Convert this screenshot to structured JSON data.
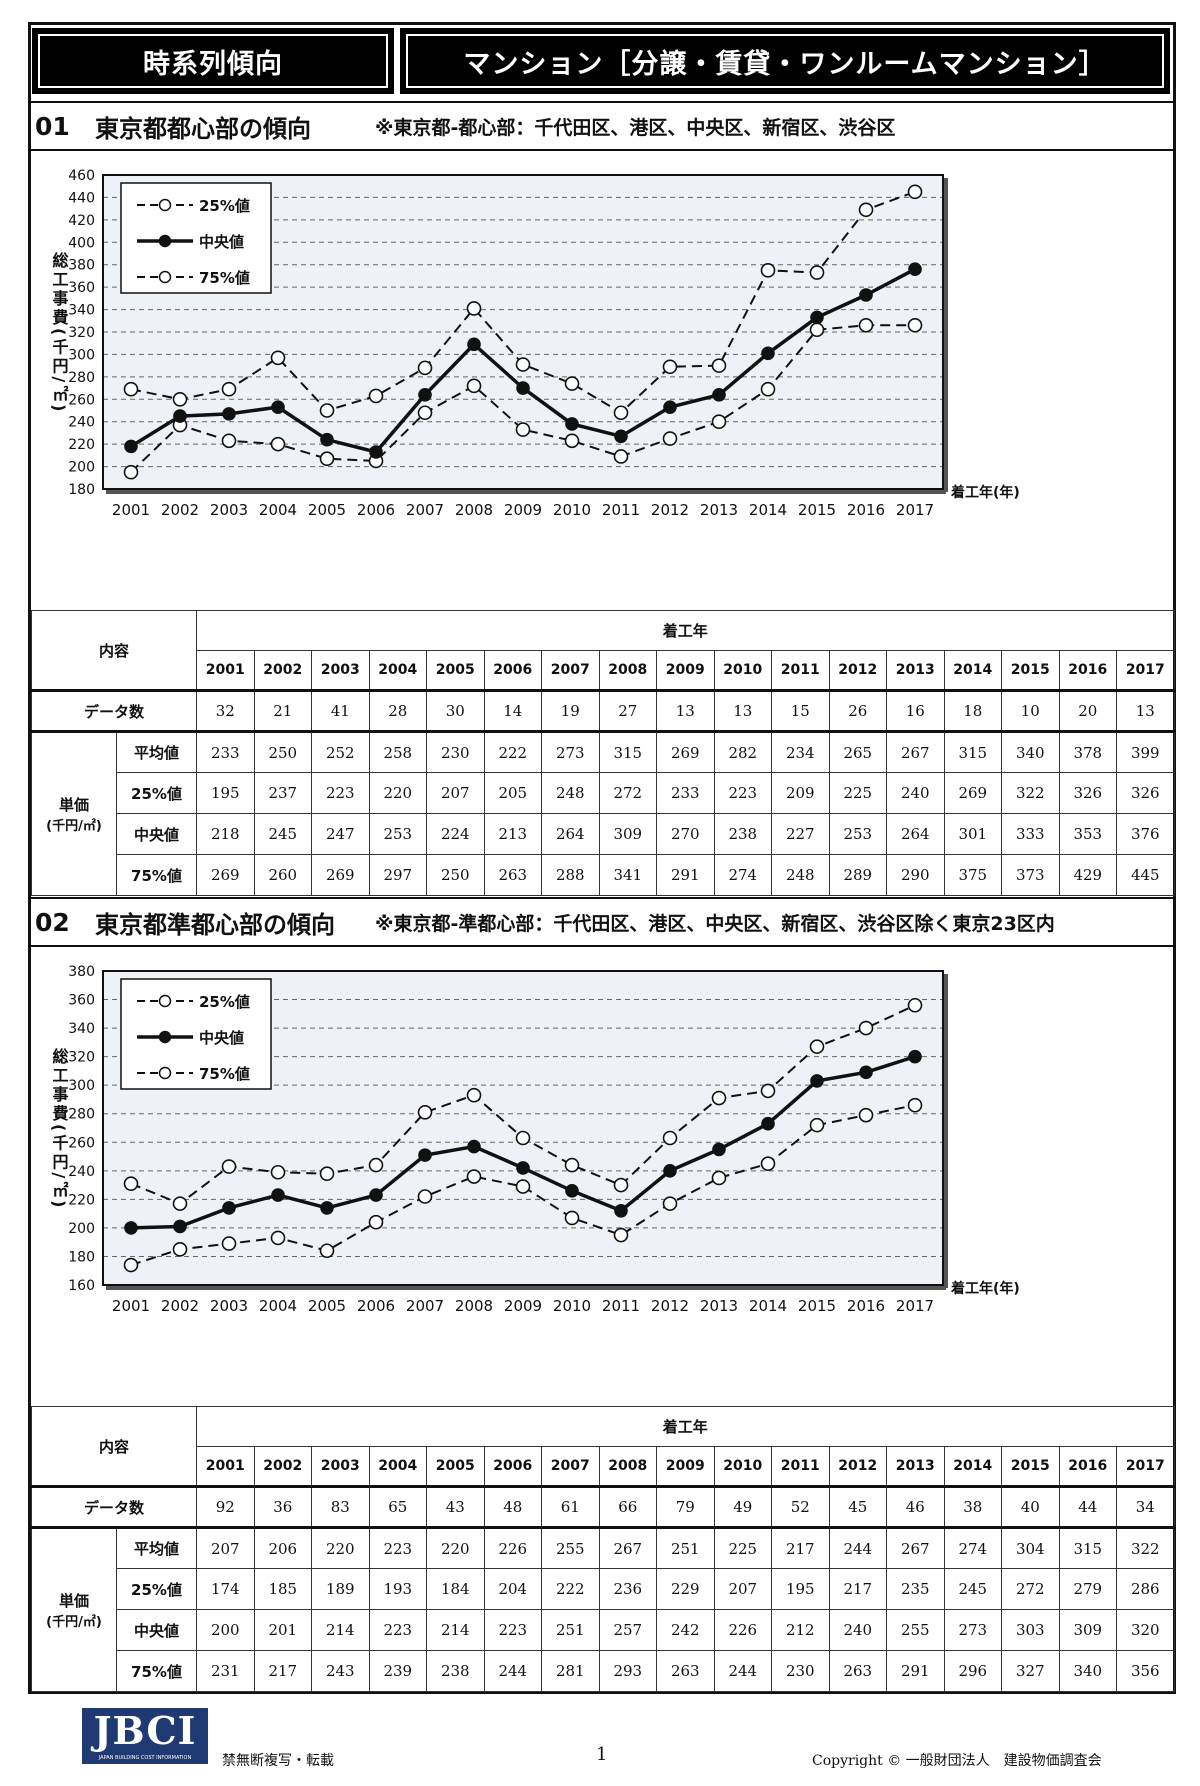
{
  "header": {
    "left_title": "時系列傾向",
    "right_title": "マンション［分譲・賃貸・ワンルームマンション］"
  },
  "sections": [
    {
      "num": "01",
      "name": "東京都都心部の傾向",
      "note": "※東京都‐都心部：千代田区、港区、中央区、新宿区、渋谷区",
      "table": {
        "corner": "内容",
        "top_header": "着工年",
        "years": [
          "2001",
          "2002",
          "2003",
          "2004",
          "2005",
          "2006",
          "2007",
          "2008",
          "2009",
          "2010",
          "2011",
          "2012",
          "2013",
          "2014",
          "2015",
          "2016",
          "2017"
        ],
        "count_label": "データ数",
        "unit_label_1": "単価",
        "unit_label_2": "(千円/㎡)",
        "count": [
          "32",
          "21",
          "41",
          "28",
          "30",
          "14",
          "19",
          "27",
          "13",
          "13",
          "15",
          "26",
          "16",
          "18",
          "10",
          "20",
          "13"
        ],
        "rows": [
          {
            "label": "平均値",
            "values": [
              "233",
              "250",
              "252",
              "258",
              "230",
              "222",
              "273",
              "315",
              "269",
              "282",
              "234",
              "265",
              "267",
              "315",
              "340",
              "378",
              "399"
            ]
          },
          {
            "label": "25%値",
            "values": [
              "195",
              "237",
              "223",
              "220",
              "207",
              "205",
              "248",
              "272",
              "233",
              "223",
              "209",
              "225",
              "240",
              "269",
              "322",
              "326",
              "326"
            ]
          },
          {
            "label": "中央値",
            "values": [
              "218",
              "245",
              "247",
              "253",
              "224",
              "213",
              "264",
              "309",
              "270",
              "238",
              "227",
              "253",
              "264",
              "301",
              "333",
              "353",
              "376"
            ]
          },
          {
            "label": "75%値",
            "values": [
              "269",
              "260",
              "269",
              "297",
              "250",
              "263",
              "288",
              "341",
              "291",
              "274",
              "248",
              "289",
              "290",
              "375",
              "373",
              "429",
              "445"
            ]
          }
        ]
      }
    },
    {
      "num": "02",
      "name": "東京都準都心部の傾向",
      "note": "※東京都‐準都心部：千代田区、港区、中央区、新宿区、渋谷区除く東京23区内",
      "table": {
        "corner": "内容",
        "top_header": "着工年",
        "years": [
          "2001",
          "2002",
          "2003",
          "2004",
          "2005",
          "2006",
          "2007",
          "2008",
          "2009",
          "2010",
          "2011",
          "2012",
          "2013",
          "2014",
          "2015",
          "2016",
          "2017"
        ],
        "count_label": "データ数",
        "unit_label_1": "単価",
        "unit_label_2": "(千円/㎡)",
        "count": [
          "92",
          "36",
          "83",
          "65",
          "43",
          "48",
          "61",
          "66",
          "79",
          "49",
          "52",
          "45",
          "46",
          "38",
          "40",
          "44",
          "34"
        ],
        "rows": [
          {
            "label": "平均値",
            "values": [
              "207",
              "206",
              "220",
              "223",
              "220",
              "226",
              "255",
              "267",
              "251",
              "225",
              "217",
              "244",
              "267",
              "274",
              "304",
              "315",
              "322"
            ]
          },
          {
            "label": "25%値",
            "values": [
              "174",
              "185",
              "189",
              "193",
              "184",
              "204",
              "222",
              "236",
              "229",
              "207",
              "195",
              "217",
              "235",
              "245",
              "272",
              "279",
              "286"
            ]
          },
          {
            "label": "中央値",
            "values": [
              "200",
              "201",
              "214",
              "223",
              "214",
              "223",
              "251",
              "257",
              "242",
              "226",
              "212",
              "240",
              "255",
              "273",
              "303",
              "309",
              "320"
            ]
          },
          {
            "label": "75%値",
            "values": [
              "231",
              "217",
              "243",
              "239",
              "238",
              "244",
              "281",
              "293",
              "263",
              "244",
              "230",
              "263",
              "291",
              "296",
              "327",
              "340",
              "356"
            ]
          }
        ]
      }
    }
  ],
  "chart_data": [
    {
      "type": "line",
      "x": [
        2001,
        2002,
        2003,
        2004,
        2005,
        2006,
        2007,
        2008,
        2009,
        2010,
        2011,
        2012,
        2013,
        2014,
        2015,
        2016,
        2017
      ],
      "ylabel": "総工事費(千円/㎡)",
      "xlabel": "着工年(年)",
      "ylim": [
        180,
        460
      ],
      "yticks": [
        180,
        200,
        220,
        240,
        260,
        280,
        300,
        320,
        340,
        360,
        380,
        400,
        420,
        440,
        460
      ],
      "grid": true,
      "legend_position": "top-left",
      "series": [
        {
          "name": "25%値",
          "style": "dashed-open",
          "values": [
            195,
            237,
            223,
            220,
            207,
            205,
            248,
            272,
            233,
            223,
            209,
            225,
            240,
            269,
            322,
            326,
            326
          ]
        },
        {
          "name": "中央値",
          "style": "solid-filled",
          "values": [
            218,
            245,
            247,
            253,
            224,
            213,
            264,
            309,
            270,
            238,
            227,
            253,
            264,
            301,
            333,
            353,
            376
          ]
        },
        {
          "name": "75%値",
          "style": "dashed-open",
          "values": [
            269,
            260,
            269,
            297,
            250,
            263,
            288,
            341,
            291,
            274,
            248,
            289,
            290,
            375,
            373,
            429,
            445
          ]
        }
      ]
    },
    {
      "type": "line",
      "x": [
        2001,
        2002,
        2003,
        2004,
        2005,
        2006,
        2007,
        2008,
        2009,
        2010,
        2011,
        2012,
        2013,
        2014,
        2015,
        2016,
        2017
      ],
      "ylabel": "総工事費(千円/㎡)",
      "xlabel": "着工年(年)",
      "ylim": [
        160,
        380
      ],
      "yticks": [
        160,
        180,
        200,
        220,
        240,
        260,
        280,
        300,
        320,
        340,
        360,
        380
      ],
      "grid": true,
      "legend_position": "top-left",
      "series": [
        {
          "name": "25%値",
          "style": "dashed-open",
          "values": [
            174,
            185,
            189,
            193,
            184,
            204,
            222,
            236,
            229,
            207,
            195,
            217,
            235,
            245,
            272,
            279,
            286
          ]
        },
        {
          "name": "中央値",
          "style": "solid-filled",
          "values": [
            200,
            201,
            214,
            223,
            214,
            223,
            251,
            257,
            242,
            226,
            212,
            240,
            255,
            273,
            303,
            309,
            320
          ]
        },
        {
          "name": "75%値",
          "style": "dashed-open",
          "values": [
            231,
            217,
            243,
            239,
            238,
            244,
            281,
            293,
            263,
            244,
            230,
            263,
            291,
            296,
            327,
            340,
            356
          ]
        }
      ]
    }
  ],
  "footer": {
    "logo_text": "JBCI",
    "logo_sub": "JAPAN BUILDING COST INFORMATION",
    "note": "禁無断複写・転載",
    "page": "1",
    "copyright": "Copyright © 一般財団法人　建設物価調査会"
  },
  "colors": {
    "plot_bg": "#eef1f6",
    "line": "#111111",
    "header_bg": "#000000",
    "logo_bg": "#1f3a72"
  }
}
